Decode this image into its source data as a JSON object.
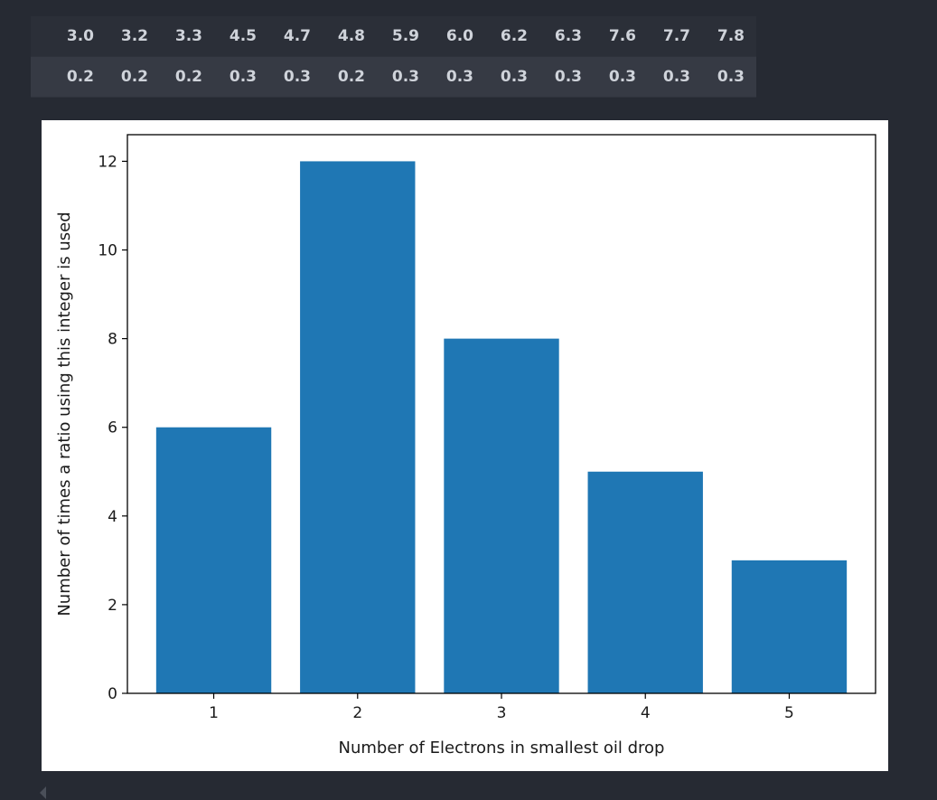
{
  "table": {
    "rows": [
      [
        "3.0",
        "3.2",
        "3.3",
        "4.5",
        "4.7",
        "4.8",
        "5.9",
        "6.0",
        "6.2",
        "6.3",
        "7.6",
        "7.7",
        "7.8"
      ],
      [
        "0.2",
        "0.2",
        "0.2",
        "0.3",
        "0.3",
        "0.2",
        "0.3",
        "0.3",
        "0.3",
        "0.3",
        "0.3",
        "0.3",
        "0.3"
      ]
    ]
  },
  "chart_data": {
    "type": "bar",
    "categories": [
      "1",
      "2",
      "3",
      "4",
      "5"
    ],
    "values": [
      6,
      12,
      8,
      5,
      3
    ],
    "xlabel": "Number of Electrons in smallest oil drop",
    "ylabel": "Number of times a ratio using this integer is used",
    "yticks": [
      "0",
      "2",
      "4",
      "6",
      "8",
      "10",
      "12"
    ],
    "ylim": [
      0,
      12.6
    ],
    "bar_color": "#1f77b4",
    "grid": false
  },
  "colors": {
    "background": "#262a33",
    "bar": "#1f77b4"
  }
}
